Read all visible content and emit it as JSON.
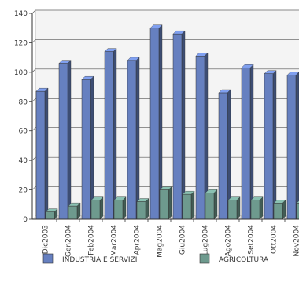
{
  "chart_data": {
    "type": "bar",
    "title": "",
    "xlabel": "",
    "ylabel": "",
    "ylim": [
      0,
      140
    ],
    "yticks": [
      0,
      20,
      40,
      60,
      80,
      100,
      120,
      140
    ],
    "grid": true,
    "legend_position": "bottom",
    "categories": [
      "Dic2003",
      "Gen2004",
      "Feb2004",
      "Mar2004",
      "Apr2004",
      "Mag2004",
      "Giu2004",
      "Lug2004",
      "Ago2004",
      "Set2004",
      "Ott2004",
      "Nov2004"
    ],
    "series": [
      {
        "name": "INDUSTRIA E SERVIZI",
        "color": "#6680c0",
        "values": [
          87,
          106,
          95,
          114,
          108,
          130,
          126,
          111,
          86,
          103,
          99,
          98
        ]
      },
      {
        "name": "AGRICOLTURA",
        "color": "#6e9a8e",
        "values": [
          5,
          9,
          13,
          13,
          12,
          20,
          17,
          18,
          13,
          13,
          11,
          11
        ]
      }
    ]
  }
}
